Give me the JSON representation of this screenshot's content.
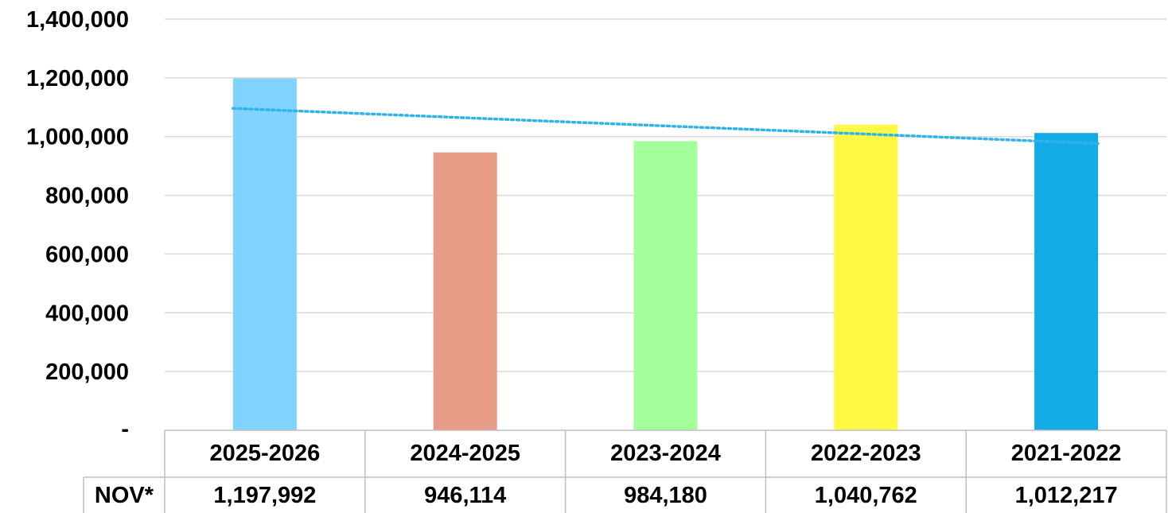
{
  "chart_data": {
    "type": "bar",
    "categories": [
      "2025-2026",
      "2024-2025",
      "2023-2024",
      "2022-2023",
      "2021-2022"
    ],
    "series": [
      {
        "name": "NOV*",
        "values": [
          1197992,
          946114,
          984180,
          1040762,
          1012217
        ]
      }
    ],
    "value_labels": [
      "1,197,992",
      "946,114",
      "984,180",
      "1,040,762",
      "1,012,217"
    ],
    "bar_colors": [
      "#80D3FF",
      "#E89C88",
      "#A3FF9C",
      "#FFF845",
      "#12ABE6"
    ],
    "ylim": [
      0,
      1400000
    ],
    "y_ticks": [
      0,
      200000,
      400000,
      600000,
      800000,
      1000000,
      1200000,
      1400000
    ],
    "y_tick_labels": [
      "-",
      "200,000",
      "400,000",
      "600,000",
      "800,000",
      "1,000,000",
      "1,200,000",
      "1,400,000"
    ],
    "trendline": {
      "type": "linear",
      "style": "dotted",
      "color": "#2FB3EC"
    },
    "grid": true,
    "data_table": true
  }
}
